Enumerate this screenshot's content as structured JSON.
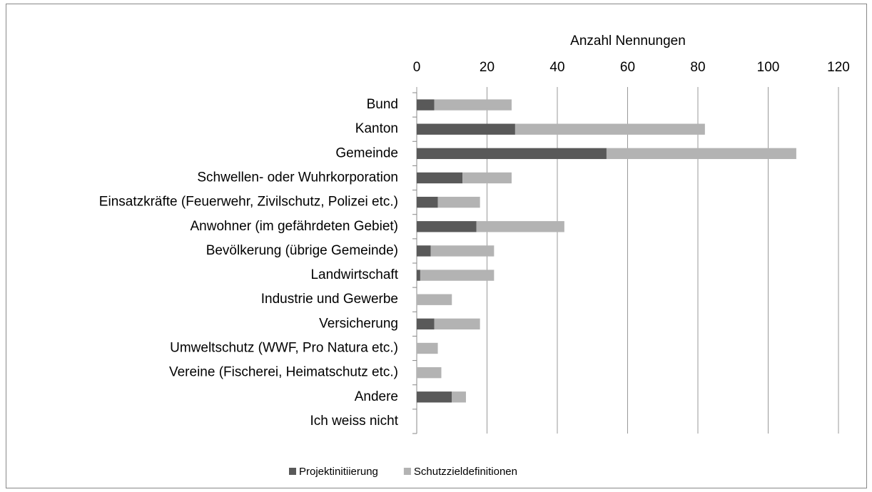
{
  "chart_data": {
    "type": "bar",
    "orientation": "horizontal",
    "stacked": true,
    "x_label": "Anzahl Nennungen",
    "categories": [
      "Bund",
      "Kanton",
      "Gemeinde",
      "Schwellen- oder Wuhrkorporation",
      "Einsatzkräfte (Feuerwehr, Zivilschutz, Polizei etc.)",
      "Anwohner (im gefährdeten Gebiet)",
      "Bevölkerung (übrige Gemeinde)",
      "Landwirtschaft",
      "Industrie und Gewerbe",
      "Versicherung",
      "Umweltschutz (WWF, Pro Natura etc.)",
      "Vereine (Fischerei, Heimatschutz etc.)",
      "Andere",
      "Ich weiss nicht"
    ],
    "series": [
      {
        "name": "Projektinitiierung",
        "color": "#595959",
        "values": [
          5,
          28,
          54,
          13,
          6,
          17,
          4,
          1,
          0,
          5,
          0,
          0,
          10,
          0
        ]
      },
      {
        "name": "Schutzzieldefinitionen",
        "color": "#b3b3b3",
        "values": [
          22,
          54,
          54,
          14,
          12,
          25,
          18,
          21,
          10,
          13,
          6,
          7,
          4,
          0
        ]
      }
    ],
    "xlim": [
      0,
      120
    ],
    "xticks": [
      0,
      20,
      40,
      60,
      80,
      100,
      120
    ],
    "grid": true,
    "legend": "bottom"
  }
}
